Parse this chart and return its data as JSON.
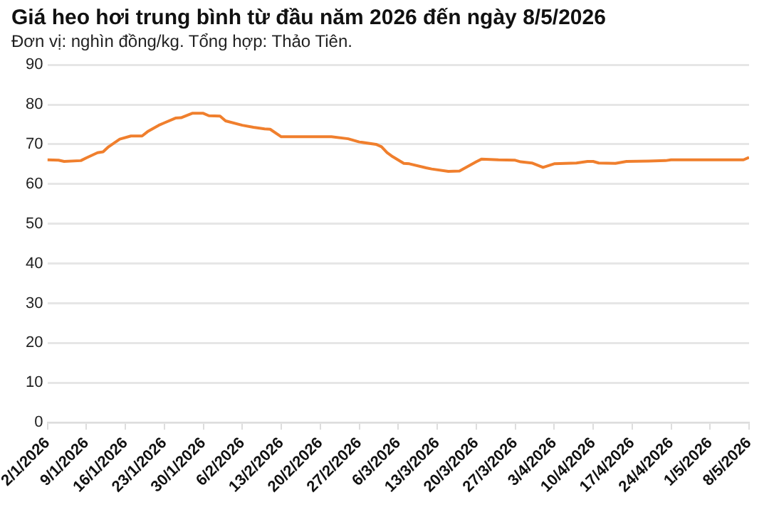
{
  "chart_data": {
    "type": "line",
    "title": "Giá heo hơi trung bình từ đầu năm 2026 đến ngày 8/5/2026",
    "subtitle": "Đơn vị: nghìn đồng/kg. Tổng hợp: Thảo Tiên.",
    "x": [
      "2026-01-02",
      "2026-01-04",
      "2026-01-05",
      "2026-01-08",
      "2026-01-09",
      "2026-01-11",
      "2026-01-12",
      "2026-01-13",
      "2026-01-15",
      "2026-01-17",
      "2026-01-19",
      "2026-01-20",
      "2026-01-22",
      "2026-01-23",
      "2026-01-25",
      "2026-01-26",
      "2026-01-28",
      "2026-01-30",
      "2026-01-31",
      "2026-02-02",
      "2026-02-03",
      "2026-02-06",
      "2026-02-08",
      "2026-02-10",
      "2026-02-11",
      "2026-02-13",
      "2026-02-22",
      "2026-02-25",
      "2026-02-27",
      "2026-03-02",
      "2026-03-03",
      "2026-03-04",
      "2026-03-05",
      "2026-03-07",
      "2026-03-08",
      "2026-03-11",
      "2026-03-12",
      "2026-03-15",
      "2026-03-17",
      "2026-03-20",
      "2026-03-21",
      "2026-03-24",
      "2026-03-27",
      "2026-03-28",
      "2026-03-30",
      "2026-04-01",
      "2026-04-03",
      "2026-04-07",
      "2026-04-09",
      "2026-04-10",
      "2026-04-11",
      "2026-04-14",
      "2026-04-16",
      "2026-04-20",
      "2026-04-23",
      "2026-04-24",
      "2026-05-07",
      "2026-05-08"
    ],
    "series": [
      {
        "color": "#f07f2d",
        "values": [
          66.1,
          66.0,
          65.7,
          65.9,
          66.6,
          67.9,
          68.1,
          69.4,
          71.3,
          72.1,
          72.1,
          73.2,
          74.8,
          75.4,
          76.6,
          76.7,
          77.8,
          77.8,
          77.2,
          77.1,
          75.9,
          74.8,
          74.3,
          73.9,
          73.8,
          71.9,
          71.9,
          71.4,
          70.6,
          70.0,
          69.4,
          67.9,
          66.9,
          65.2,
          65.1,
          64.1,
          63.8,
          63.2,
          63.3,
          65.6,
          66.3,
          66.1,
          66.0,
          65.6,
          65.3,
          64.2,
          65.1,
          65.3,
          65.7,
          65.7,
          65.3,
          65.2,
          65.7,
          65.8,
          65.9,
          66.1,
          66.1,
          66.7
        ]
      }
    ],
    "xlim": [
      "2026-01-02",
      "2026-05-08"
    ],
    "xticks": [
      {
        "value": "2026-01-02",
        "label": "2/1/2026"
      },
      {
        "value": "2026-01-09",
        "label": "9/1/2026"
      },
      {
        "value": "2026-01-16",
        "label": "16/1/2026"
      },
      {
        "value": "2026-01-23",
        "label": "23/1/2026"
      },
      {
        "value": "2026-01-30",
        "label": "30/1/2026"
      },
      {
        "value": "2026-02-06",
        "label": "6/2/2026"
      },
      {
        "value": "2026-02-13",
        "label": "13/2/2026"
      },
      {
        "value": "2026-02-20",
        "label": "20/2/2026"
      },
      {
        "value": "2026-02-27",
        "label": "27/2/2026"
      },
      {
        "value": "2026-03-06",
        "label": "6/3/2026"
      },
      {
        "value": "2026-03-13",
        "label": "13/3/2026"
      },
      {
        "value": "2026-03-20",
        "label": "20/3/2026"
      },
      {
        "value": "2026-03-27",
        "label": "27/3/2026"
      },
      {
        "value": "2026-04-03",
        "label": "3/4/2026"
      },
      {
        "value": "2026-04-10",
        "label": "10/4/2026"
      },
      {
        "value": "2026-04-17",
        "label": "17/4/2026"
      },
      {
        "value": "2026-04-24",
        "label": "24/4/2026"
      },
      {
        "value": "2026-05-01",
        "label": "1/5/2026"
      },
      {
        "value": "2026-05-08",
        "label": "8/5/2026"
      }
    ],
    "ylim": [
      0,
      90
    ],
    "yticks": [
      0,
      10,
      20,
      30,
      40,
      50,
      60,
      70,
      80,
      90
    ],
    "grid": "y",
    "legend": false,
    "marker": "none",
    "line_style": "solid"
  }
}
